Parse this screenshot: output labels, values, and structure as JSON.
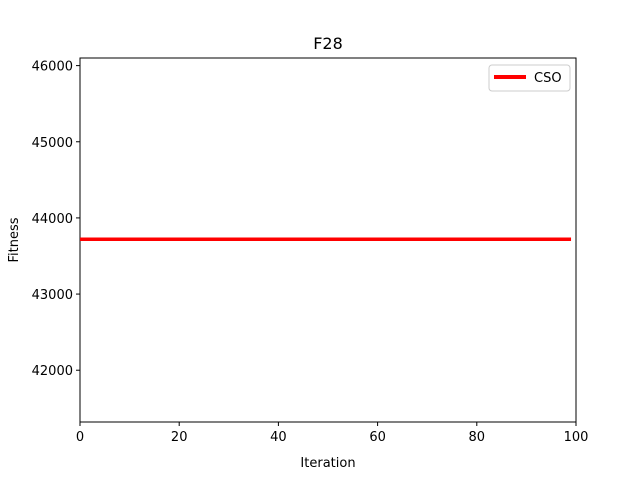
{
  "chart_data": {
    "type": "line",
    "title": "F28",
    "xlabel": "Iteration",
    "ylabel": "Fitness",
    "xlim": [
      0,
      100
    ],
    "ylim": [
      41320,
      46100
    ],
    "xticks": [
      0,
      20,
      40,
      60,
      80,
      100
    ],
    "yticks": [
      42000,
      43000,
      44000,
      45000,
      46000
    ],
    "grid": false,
    "legend_position": "top-right",
    "series": [
      {
        "name": "CSO",
        "color": "#ff0000",
        "x": [
          0,
          99
        ],
        "y": [
          43720,
          43720
        ]
      }
    ]
  }
}
